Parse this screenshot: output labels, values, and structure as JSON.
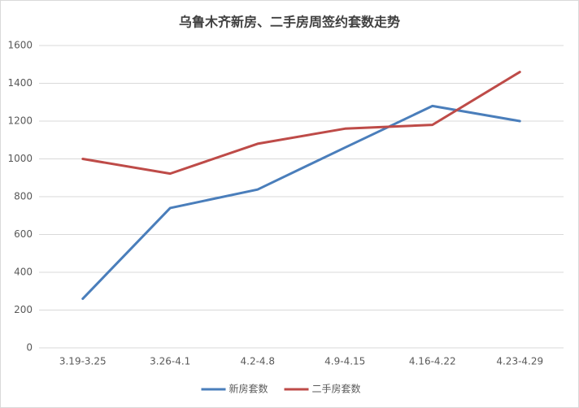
{
  "chart_data": {
    "type": "line",
    "title": "乌鲁木齐新房、二手房周签约套数走势",
    "categories": [
      "3.19-3.25",
      "3.26-4.1",
      "4.2-4.8",
      "4.9-4.15",
      "4.16-4.22",
      "4.23-4.29"
    ],
    "series": [
      {
        "name": "新房套数",
        "color": "#4a7ebb",
        "values": [
          260,
          740,
          838,
          1060,
          1280,
          1200
        ]
      },
      {
        "name": "二手房套数",
        "color": "#be4b48",
        "values": [
          1000,
          922,
          1080,
          1160,
          1180,
          1460
        ]
      }
    ],
    "ylim": [
      0,
      1600
    ],
    "yticks": [
      0,
      200,
      400,
      600,
      800,
      1000,
      1200,
      1400,
      1600
    ],
    "grid": true,
    "legend": "bottom"
  }
}
